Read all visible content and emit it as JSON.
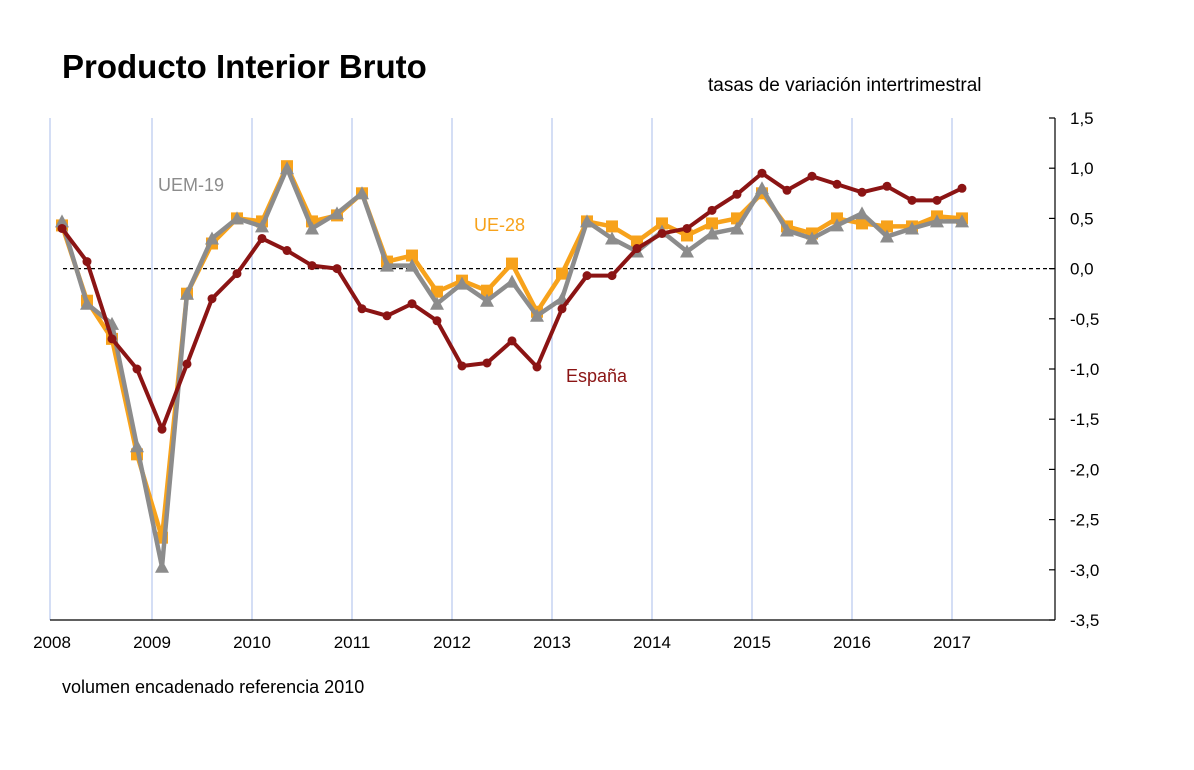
{
  "chart_data": {
    "type": "line",
    "title": "Producto Interior Bruto",
    "subtitle": "tasas de variación intertrimestral",
    "note": "volumen encadenado referencia 2010",
    "x": [
      "2008T1",
      "2008T2",
      "2008T3",
      "2008T4",
      "2009T1",
      "2009T2",
      "2009T3",
      "2009T4",
      "2010T1",
      "2010T2",
      "2010T3",
      "2010T4",
      "2011T1",
      "2011T2",
      "2011T3",
      "2011T4",
      "2012T1",
      "2012T2",
      "2012T3",
      "2012T4",
      "2013T1",
      "2013T2",
      "2013T3",
      "2013T4",
      "2014T1",
      "2014T2",
      "2014T3",
      "2014T4",
      "2015T1",
      "2015T2",
      "2015T3",
      "2015T4",
      "2016T1",
      "2016T2",
      "2016T3",
      "2016T4",
      "2017T1"
    ],
    "x_tick_labels": [
      "2008",
      "2009",
      "2010",
      "2011",
      "2012",
      "2013",
      "2014",
      "2015",
      "2016",
      "2017"
    ],
    "y_tick_labels": [
      "1,5",
      "1,0",
      "0,5",
      "0,0",
      "-0,5",
      "-1,0",
      "-1,5",
      "-2,0",
      "-2,5",
      "-3,0",
      "-3,5"
    ],
    "ylim": [
      -3.5,
      1.5
    ],
    "grid": "vertical at year starts",
    "reference_line": 0,
    "series": [
      {
        "name": "España",
        "color": "#8b1414",
        "marker": "circle",
        "values": [
          0.4,
          0.07,
          -0.7,
          -1.0,
          -1.6,
          -0.95,
          -0.3,
          -0.05,
          0.3,
          0.18,
          0.03,
          0.0,
          -0.4,
          -0.47,
          -0.35,
          -0.52,
          -0.97,
          -0.94,
          -0.72,
          -0.98,
          -0.4,
          -0.07,
          -0.07,
          0.2,
          0.35,
          0.4,
          0.58,
          0.74,
          0.95,
          0.78,
          0.92,
          0.84,
          0.76,
          0.82,
          0.68,
          0.68,
          0.8
        ]
      },
      {
        "name": "UE-28",
        "color": "#f7a21b",
        "marker": "square",
        "values": [
          0.43,
          -0.32,
          -0.7,
          -1.85,
          -2.68,
          -0.25,
          0.25,
          0.5,
          0.47,
          1.02,
          0.47,
          0.53,
          0.75,
          0.07,
          0.13,
          -0.23,
          -0.12,
          -0.22,
          0.05,
          -0.43,
          -0.05,
          0.47,
          0.42,
          0.27,
          0.45,
          0.33,
          0.45,
          0.5,
          0.75,
          0.42,
          0.35,
          0.5,
          0.45,
          0.42,
          0.42,
          0.52,
          0.5
        ]
      },
      {
        "name": "UEM-19",
        "color": "#8c8c8c",
        "marker": "triangle",
        "values": [
          0.47,
          -0.35,
          -0.55,
          -1.77,
          -2.97,
          -0.25,
          0.3,
          0.5,
          0.42,
          1.0,
          0.4,
          0.55,
          0.75,
          0.03,
          0.03,
          -0.35,
          -0.15,
          -0.32,
          -0.13,
          -0.47,
          -0.3,
          0.47,
          0.3,
          0.17,
          0.37,
          0.17,
          0.35,
          0.4,
          0.8,
          0.38,
          0.3,
          0.43,
          0.55,
          0.32,
          0.4,
          0.47,
          0.47
        ]
      }
    ],
    "series_labels": [
      "UEM-19",
      "UE-28",
      "España"
    ]
  }
}
